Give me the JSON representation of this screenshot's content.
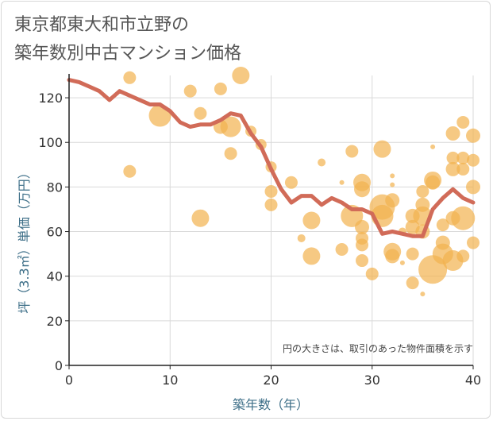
{
  "title_line1": "東京都東大和市立野の",
  "title_line2": "築年数別中古マンション価格",
  "note": "円の大きさは、取引のあった物件面積を示す",
  "colors": {
    "bubble": "#f2b24f",
    "line": "#d16b58",
    "grid": "#d9d9d9",
    "axis": "#222222",
    "axis_label": "#3e6f88"
  },
  "chart_data": {
    "type": "scatter",
    "xlabel": "築年数（年）",
    "ylabel": "坪（3.3㎡）単価（万円）",
    "xlim": [
      0,
      40
    ],
    "ylim": [
      0,
      130
    ],
    "xticks": [
      0,
      10,
      20,
      30,
      40
    ],
    "yticks": [
      0,
      20,
      40,
      60,
      80,
      100,
      120
    ],
    "grid": true,
    "bubbles": [
      {
        "x": 6,
        "y": 129,
        "s": 8
      },
      {
        "x": 6,
        "y": 87,
        "s": 8
      },
      {
        "x": 9,
        "y": 112,
        "s": 14
      },
      {
        "x": 12,
        "y": 123,
        "s": 8
      },
      {
        "x": 13,
        "y": 113,
        "s": 8
      },
      {
        "x": 13,
        "y": 66,
        "s": 11
      },
      {
        "x": 15,
        "y": 124,
        "s": 8
      },
      {
        "x": 15,
        "y": 107,
        "s": 9
      },
      {
        "x": 16,
        "y": 107,
        "s": 13
      },
      {
        "x": 16,
        "y": 95,
        "s": 8
      },
      {
        "x": 17,
        "y": 130,
        "s": 11
      },
      {
        "x": 18,
        "y": 105,
        "s": 7
      },
      {
        "x": 19,
        "y": 99,
        "s": 7
      },
      {
        "x": 20,
        "y": 89,
        "s": 7
      },
      {
        "x": 20,
        "y": 78,
        "s": 8
      },
      {
        "x": 20,
        "y": 72,
        "s": 8
      },
      {
        "x": 22,
        "y": 82,
        "s": 8
      },
      {
        "x": 23,
        "y": 57,
        "s": 5
      },
      {
        "x": 24,
        "y": 65,
        "s": 11
      },
      {
        "x": 24,
        "y": 49,
        "s": 11
      },
      {
        "x": 25,
        "y": 91,
        "s": 5
      },
      {
        "x": 27,
        "y": 82,
        "s": 3
      },
      {
        "x": 27,
        "y": 52,
        "s": 8
      },
      {
        "x": 28,
        "y": 96,
        "s": 8
      },
      {
        "x": 28,
        "y": 67,
        "s": 14
      },
      {
        "x": 29,
        "y": 82,
        "s": 11
      },
      {
        "x": 29,
        "y": 79,
        "s": 10
      },
      {
        "x": 29,
        "y": 62,
        "s": 9
      },
      {
        "x": 29,
        "y": 57,
        "s": 8
      },
      {
        "x": 29,
        "y": 54,
        "s": 8
      },
      {
        "x": 29,
        "y": 47,
        "s": 8
      },
      {
        "x": 30,
        "y": 41,
        "s": 8
      },
      {
        "x": 31,
        "y": 97,
        "s": 11
      },
      {
        "x": 31,
        "y": 71,
        "s": 16
      },
      {
        "x": 31,
        "y": 67,
        "s": 14
      },
      {
        "x": 32,
        "y": 74,
        "s": 9
      },
      {
        "x": 32,
        "y": 51,
        "s": 11
      },
      {
        "x": 32,
        "y": 49,
        "s": 9
      },
      {
        "x": 32,
        "y": 85,
        "s": 3
      },
      {
        "x": 32,
        "y": 81,
        "s": 3
      },
      {
        "x": 33,
        "y": 46,
        "s": 3
      },
      {
        "x": 33,
        "y": 60,
        "s": 5
      },
      {
        "x": 34,
        "y": 37,
        "s": 8
      },
      {
        "x": 34,
        "y": 50,
        "s": 8
      },
      {
        "x": 34,
        "y": 67,
        "s": 9
      },
      {
        "x": 34,
        "y": 62,
        "s": 9
      },
      {
        "x": 35,
        "y": 78,
        "s": 8
      },
      {
        "x": 35,
        "y": 72,
        "s": 9
      },
      {
        "x": 35,
        "y": 67,
        "s": 12
      },
      {
        "x": 35,
        "y": 60,
        "s": 9
      },
      {
        "x": 35,
        "y": 32,
        "s": 3
      },
      {
        "x": 36,
        "y": 98,
        "s": 3
      },
      {
        "x": 36,
        "y": 83,
        "s": 11
      },
      {
        "x": 36,
        "y": 82,
        "s": 9
      },
      {
        "x": 36,
        "y": 43,
        "s": 18
      },
      {
        "x": 37,
        "y": 55,
        "s": 9
      },
      {
        "x": 37,
        "y": 50,
        "s": 13
      },
      {
        "x": 37,
        "y": 63,
        "s": 8
      },
      {
        "x": 38,
        "y": 104,
        "s": 9
      },
      {
        "x": 38,
        "y": 93,
        "s": 8
      },
      {
        "x": 38,
        "y": 88,
        "s": 9
      },
      {
        "x": 38,
        "y": 66,
        "s": 9
      },
      {
        "x": 38,
        "y": 47,
        "s": 13
      },
      {
        "x": 39,
        "y": 109,
        "s": 8
      },
      {
        "x": 39,
        "y": 93,
        "s": 8
      },
      {
        "x": 39,
        "y": 88,
        "s": 8
      },
      {
        "x": 39,
        "y": 66,
        "s": 15
      },
      {
        "x": 39,
        "y": 49,
        "s": 8
      },
      {
        "x": 40,
        "y": 103,
        "s": 9
      },
      {
        "x": 40,
        "y": 92,
        "s": 8
      },
      {
        "x": 40,
        "y": 80,
        "s": 9
      },
      {
        "x": 40,
        "y": 55,
        "s": 8
      }
    ],
    "series": [
      {
        "x": [
          0,
          1,
          2,
          3,
          4,
          5,
          6,
          7,
          8,
          9,
          10,
          11,
          12,
          13,
          14,
          15,
          16,
          17,
          18,
          19,
          20,
          21,
          22,
          23,
          24,
          25,
          26,
          27,
          28,
          29,
          30,
          31,
          32,
          33,
          34,
          35,
          36,
          37,
          38,
          39,
          40
        ],
        "values": [
          128,
          127,
          125,
          123,
          119,
          123,
          121,
          119,
          117,
          117,
          114,
          109,
          107,
          108,
          108,
          110,
          113,
          112,
          104,
          98,
          88,
          79,
          73,
          76,
          76,
          72,
          75,
          73,
          70,
          70,
          68,
          59,
          60,
          59,
          58,
          58,
          70,
          75,
          79,
          75,
          73
        ]
      }
    ]
  }
}
